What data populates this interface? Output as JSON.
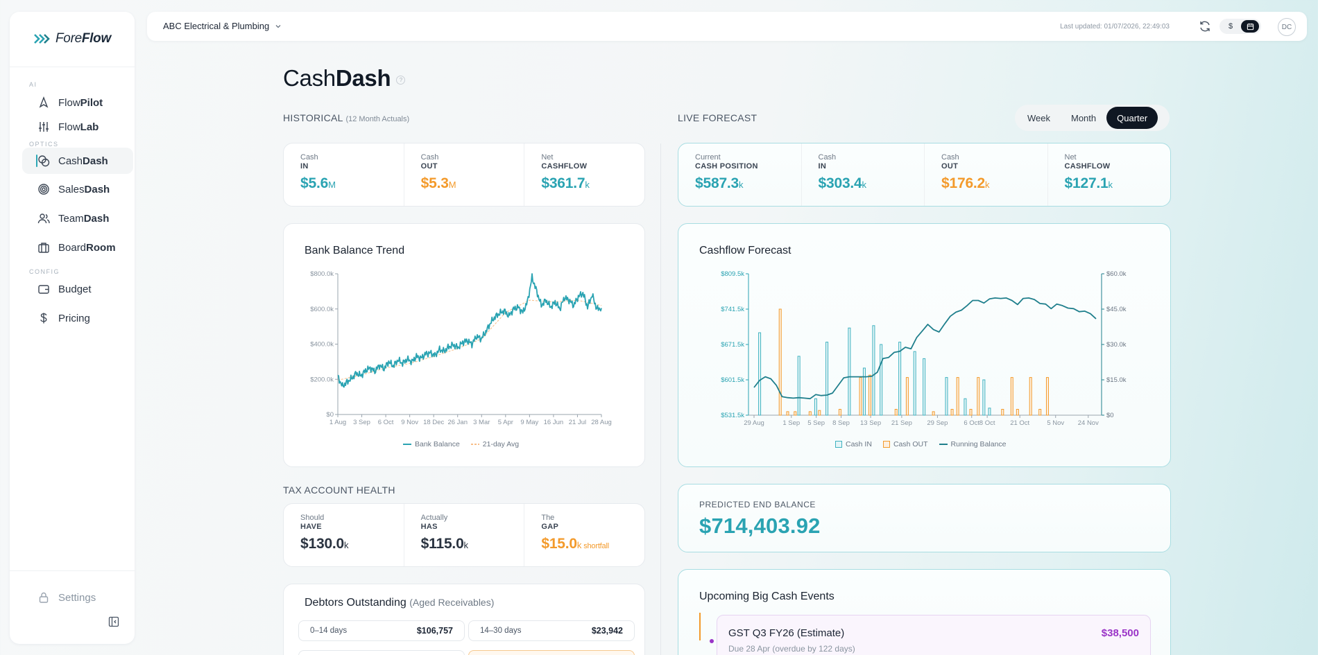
{
  "app": {
    "logo_prefix": "Fore",
    "logo_suffix": "Flow"
  },
  "sidebar": {
    "sections": {
      "ai": "AI",
      "optics": "OPTICS",
      "config": "CONFIG"
    },
    "items": [
      {
        "pre": "Flow",
        "bold": "Pilot",
        "icon": "rocket-icon"
      },
      {
        "pre": "Flow",
        "bold": "Lab",
        "icon": "sliders-icon"
      },
      {
        "pre": "Cash",
        "bold": "Dash",
        "icon": "coins-icon",
        "active": true
      },
      {
        "pre": "Sales",
        "bold": "Dash",
        "icon": "target-icon"
      },
      {
        "pre": "Team",
        "bold": "Dash",
        "icon": "users-icon"
      },
      {
        "pre": "Board",
        "bold": "Room",
        "icon": "briefcase-icon"
      },
      {
        "pre": "Budget",
        "bold": "",
        "icon": "wallet-icon"
      },
      {
        "pre": "Pricing",
        "bold": "",
        "icon": "dollar-icon"
      }
    ],
    "settings": "Settings"
  },
  "topbar": {
    "company": "ABC Electrical & Plumbing",
    "last_updated": "Last updated: 01/07/2026, 22:49:03",
    "currency_toggle": "$",
    "avatar": "DC"
  },
  "page": {
    "title_pre": "Cash",
    "title_bold": "Dash",
    "help": "?"
  },
  "historical": {
    "heading": "HISTORICAL",
    "sub": "(12 Month Actuals)",
    "kpis": [
      {
        "l1": "Cash",
        "l2": "IN",
        "value": "$5.6",
        "unit": "M"
      },
      {
        "l1": "Cash",
        "l2": "OUT",
        "value": "$5.3",
        "unit": "M"
      },
      {
        "l1": "Net",
        "l2": "CASHFLOW",
        "value": "$361.7",
        "unit": "k"
      }
    ]
  },
  "live": {
    "heading": "LIVE FORECAST",
    "tabs": [
      "Week",
      "Month",
      "Quarter"
    ],
    "active_tab": "Quarter",
    "kpis": [
      {
        "l1": "Current",
        "l2": "CASH POSITION",
        "value": "$587.3",
        "unit": "k"
      },
      {
        "l1": "Cash",
        "l2": "IN",
        "value": "$303.4",
        "unit": "k"
      },
      {
        "l1": "Cash",
        "l2": "OUT",
        "value": "$176.2",
        "unit": "k"
      },
      {
        "l1": "Net",
        "l2": "CASHFLOW",
        "value": "$127.1",
        "unit": "k"
      }
    ]
  },
  "bank_chart": {
    "title": "Bank Balance Trend",
    "legend": [
      "Bank Balance",
      "21-day Avg"
    ]
  },
  "forecast_chart": {
    "title": "Cashflow Forecast",
    "legend": [
      "Cash IN",
      "Cash OUT",
      "Running Balance"
    ]
  },
  "tax": {
    "heading": "TAX ACCOUNT HEALTH",
    "kpis": [
      {
        "l1": "Should",
        "l2": "HAVE",
        "value": "$130.0",
        "unit": "k"
      },
      {
        "l1": "Actually",
        "l2": "HAS",
        "value": "$115.0",
        "unit": "k"
      },
      {
        "l1": "The",
        "l2": "GAP",
        "value": "$15.0",
        "unit": "k",
        "note": "shortfall"
      }
    ]
  },
  "predicted": {
    "label": "PREDICTED END BALANCE",
    "value": "$714,403.92"
  },
  "debtors": {
    "title": "Debtors Outstanding",
    "sub": "(Aged Receivables)",
    "buckets": [
      {
        "label": "0–14 days",
        "amount": "$106,757"
      },
      {
        "label": "14–30 days",
        "amount": "$23,942"
      }
    ]
  },
  "events": {
    "title": "Upcoming Big Cash Events",
    "items": [
      {
        "name": "GST Q3 FY26 (Estimate)",
        "amount": "$38,500",
        "due": "Due 28 Apr (overdue by 122 days)"
      }
    ]
  },
  "chart_data": [
    {
      "type": "line",
      "title": "Bank Balance Trend",
      "series": [
        {
          "name": "Bank Balance",
          "x": [
            "1 Aug",
            "8 Aug",
            "15 Aug",
            "22 Aug",
            "29 Aug",
            "3 Sep",
            "10 Sep",
            "17 Sep",
            "24 Sep",
            "1 Oct",
            "6 Oct",
            "13 Oct",
            "20 Oct",
            "27 Oct",
            "3 Nov",
            "9 Nov",
            "16 Nov",
            "23 Nov",
            "30 Nov",
            "7 Dec",
            "14 Dec",
            "18 Dec",
            "25 Dec",
            "1 Jan",
            "8 Jan",
            "15 Jan",
            "22 Jan",
            "26 Jan",
            "2 Feb",
            "9 Feb",
            "16 Feb",
            "23 Feb",
            "3 Mar",
            "10 Mar",
            "17 Mar",
            "24 Mar",
            "31 Mar",
            "5 Apr",
            "12 Apr",
            "19 Apr",
            "26 Apr",
            "3 May",
            "9 May",
            "16 May",
            "23 May",
            "30 May",
            "6 Jun",
            "16 Jun",
            "23 Jun",
            "30 Jun",
            "7 Jul",
            "14 Jul",
            "21 Jul",
            "28 Jul",
            "4 Aug",
            "11 Aug",
            "18 Aug",
            "28 Aug"
          ],
          "values": [
            215,
            160,
            185,
            205,
            235,
            220,
            250,
            265,
            245,
            280,
            260,
            300,
            275,
            310,
            290,
            315,
            300,
            330,
            320,
            345,
            350,
            335,
            370,
            360,
            385,
            395,
            380,
            410,
            420,
            400,
            445,
            430,
            470,
            520,
            555,
            575,
            590,
            560,
            600,
            610,
            580,
            640,
            780,
            700,
            620,
            650,
            610,
            640,
            600,
            665,
            650,
            620,
            670,
            690,
            610,
            680,
            600,
            605
          ]
        },
        {
          "name": "21-day Avg",
          "x": [
            "1 Aug",
            "3 Sep",
            "6 Oct",
            "9 Nov",
            "18 Dec",
            "26 Jan",
            "3 Mar",
            "5 Apr",
            "9 May",
            "16 Jun",
            "21 Jul",
            "28 Aug"
          ],
          "values": [
            195,
            225,
            265,
            290,
            330,
            375,
            430,
            580,
            650,
            640,
            650,
            620
          ]
        }
      ],
      "xticks": [
        "1 Aug",
        "3 Sep",
        "6 Oct",
        "9 Nov",
        "18 Dec",
        "26 Jan",
        "3 Mar",
        "5 Apr",
        "9 May",
        "16 Jun",
        "21 Jul",
        "28 Aug"
      ],
      "yticks": [
        "$0",
        "$200.0k",
        "$400.0k",
        "$600.0k",
        "$800.0k"
      ],
      "ylim": [
        0,
        800
      ],
      "yunit": "k"
    },
    {
      "type": "bar",
      "title": "Cashflow Forecast",
      "xticks": [
        "29 Aug",
        "1 Sep",
        "5 Sep",
        "8 Sep",
        "13 Sep",
        "21 Sep",
        "29 Sep",
        "6 Oct",
        "8 Oct",
        "21 Oct",
        "5 Nov",
        "24 Nov"
      ],
      "left_axis": {
        "ticks": [
          "$531.5k",
          "$601.5k",
          "$671.5k",
          "$741.5k",
          "$809.5k"
        ],
        "ylim": [
          531.5,
          809.5
        ]
      },
      "right_axis": {
        "ticks": [
          "$0",
          "$15.0k",
          "$30.0k",
          "$45.0k",
          "$60.0k"
        ],
        "ylim": [
          0,
          60
        ]
      },
      "series": [
        {
          "name": "Cash IN",
          "bars": [
            {
              "d": 3,
              "v": 35
            },
            {
              "d": 24,
              "v": 25
            },
            {
              "d": 33,
              "v": 7
            },
            {
              "d": 39,
              "v": 31
            },
            {
              "d": 51,
              "v": 37
            },
            {
              "d": 59,
              "v": 20
            },
            {
              "d": 64,
              "v": 38
            },
            {
              "d": 68,
              "v": 30
            },
            {
              "d": 78,
              "v": 31
            },
            {
              "d": 86,
              "v": 27
            },
            {
              "d": 91,
              "v": 24
            },
            {
              "d": 103,
              "v": 16
            },
            {
              "d": 113,
              "v": 7
            },
            {
              "d": 123,
              "v": 15
            },
            {
              "d": 126,
              "v": 3
            }
          ]
        },
        {
          "name": "Cash OUT",
          "bars": [
            {
              "d": 14,
              "v": 45
            },
            {
              "d": 18,
              "v": 1.5
            },
            {
              "d": 22,
              "v": 1.5
            },
            {
              "d": 30,
              "v": 1.5
            },
            {
              "d": 35,
              "v": 2
            },
            {
              "d": 46,
              "v": 2.5
            },
            {
              "d": 57,
              "v": 16
            },
            {
              "d": 62,
              "v": 17
            },
            {
              "d": 76,
              "v": 2.5
            },
            {
              "d": 82,
              "v": 16
            },
            {
              "d": 96,
              "v": 1.5
            },
            {
              "d": 106,
              "v": 2.5
            },
            {
              "d": 109,
              "v": 16
            },
            {
              "d": 116,
              "v": 2.5
            },
            {
              "d": 120,
              "v": 16
            },
            {
              "d": 133,
              "v": 2.5
            },
            {
              "d": 138,
              "v": 16
            },
            {
              "d": 141,
              "v": 2.5
            },
            {
              "d": 148,
              "v": 16
            },
            {
              "d": 153,
              "v": 2.5
            },
            {
              "d": 157,
              "v": 16
            }
          ]
        },
        {
          "name": "Running Balance",
          "points": [
            [
              0,
              586
            ],
            [
              3,
              600
            ],
            [
              6,
              607
            ],
            [
              9,
              603
            ],
            [
              12,
              590
            ],
            [
              15,
              568
            ],
            [
              18,
              566
            ],
            [
              21,
              565
            ],
            [
              24,
              566
            ],
            [
              27,
              565
            ],
            [
              30,
              564
            ],
            [
              33,
              572
            ],
            [
              36,
              570
            ],
            [
              39,
              571
            ],
            [
              42,
              575
            ],
            [
              45,
              590
            ],
            [
              48,
              605
            ],
            [
              51,
              607
            ],
            [
              54,
              607
            ],
            [
              57,
              607
            ],
            [
              60,
              607
            ],
            [
              63,
              608
            ],
            [
              66,
              616
            ],
            [
              69,
              643
            ],
            [
              72,
              645
            ],
            [
              75,
              655
            ],
            [
              78,
              657
            ],
            [
              81,
              665
            ],
            [
              84,
              662
            ],
            [
              87,
              684
            ],
            [
              90,
              697
            ],
            [
              93,
              710
            ],
            [
              96,
              700
            ],
            [
              99,
              695
            ],
            [
              102,
              711
            ],
            [
              105,
              726
            ],
            [
              108,
              734
            ],
            [
              111,
              738
            ],
            [
              114,
              747
            ],
            [
              117,
              757
            ],
            [
              120,
              757
            ],
            [
              123,
              752
            ],
            [
              126,
              760
            ],
            [
              129,
              762
            ],
            [
              132,
              761
            ],
            [
              135,
              762
            ],
            [
              138,
              757
            ],
            [
              141,
              749
            ],
            [
              144,
              761
            ],
            [
              147,
              762
            ],
            [
              150,
              759
            ],
            [
              153,
              751
            ],
            [
              156,
              750
            ],
            [
              159,
              741
            ],
            [
              162,
              750
            ],
            [
              165,
              747
            ],
            [
              168,
              742
            ],
            [
              171,
              741
            ],
            [
              174,
              735
            ],
            [
              177,
              736
            ],
            [
              180,
              731
            ],
            [
              183,
              721
            ]
          ]
        }
      ]
    }
  ]
}
